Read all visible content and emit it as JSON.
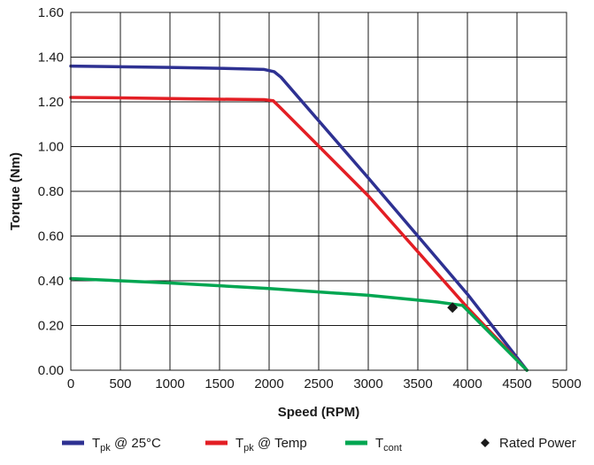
{
  "chart_data": {
    "type": "line",
    "xlabel": "Speed (RPM)",
    "ylabel": "Torque (Nm)",
    "xlim": [
      0,
      5000
    ],
    "ylim": [
      0,
      1.6
    ],
    "xticks": [
      0,
      500,
      1000,
      1500,
      2000,
      2500,
      3000,
      3500,
      4000,
      4500,
      5000
    ],
    "xtick_labels": [
      "0",
      "500",
      "1000",
      "1500",
      "2000",
      "2500",
      "3000",
      "3500",
      "4000",
      "4500",
      "5000"
    ],
    "yticks": [
      0,
      0.2,
      0.4,
      0.6,
      0.8,
      1.0,
      1.2,
      1.4,
      1.6
    ],
    "ytick_labels": [
      "0.00",
      "0.20",
      "0.40",
      "0.60",
      "0.80",
      "1.00",
      "1.20",
      "1.40",
      "1.60"
    ],
    "grid": true,
    "legend_position": "bottom",
    "series": [
      {
        "name_main": "T",
        "name_sub": "pk",
        "name_rest": " @ 25°C",
        "color": "#2e3192",
        "points": [
          [
            0,
            1.36
          ],
          [
            500,
            1.357
          ],
          [
            1000,
            1.354
          ],
          [
            1500,
            1.35
          ],
          [
            1950,
            1.345
          ],
          [
            2050,
            1.335
          ],
          [
            2120,
            1.31
          ],
          [
            3000,
            0.86
          ],
          [
            4000,
            0.34
          ],
          [
            4600,
            0.0
          ]
        ]
      },
      {
        "name_main": "T",
        "name_sub": "pk",
        "name_rest": " @ Temp",
        "color": "#e31e24",
        "points": [
          [
            0,
            1.22
          ],
          [
            500,
            1.218
          ],
          [
            1000,
            1.215
          ],
          [
            1500,
            1.212
          ],
          [
            1950,
            1.21
          ],
          [
            2040,
            1.205
          ],
          [
            2100,
            1.18
          ],
          [
            3000,
            0.78
          ],
          [
            4000,
            0.28
          ],
          [
            4600,
            0.0
          ]
        ]
      },
      {
        "name_main": "T",
        "name_sub": "cont",
        "name_rest": "",
        "color": "#00a651",
        "points": [
          [
            0,
            0.41
          ],
          [
            1000,
            0.39
          ],
          [
            2000,
            0.365
          ],
          [
            3000,
            0.335
          ],
          [
            3700,
            0.305
          ],
          [
            3950,
            0.29
          ],
          [
            4600,
            0.0
          ]
        ]
      },
      {
        "name_main": "Rated Power",
        "name_sub": "",
        "name_rest": "",
        "color": "#1a1a1a",
        "marker": "diamond",
        "points": [
          [
            3850,
            0.28
          ]
        ]
      }
    ]
  }
}
